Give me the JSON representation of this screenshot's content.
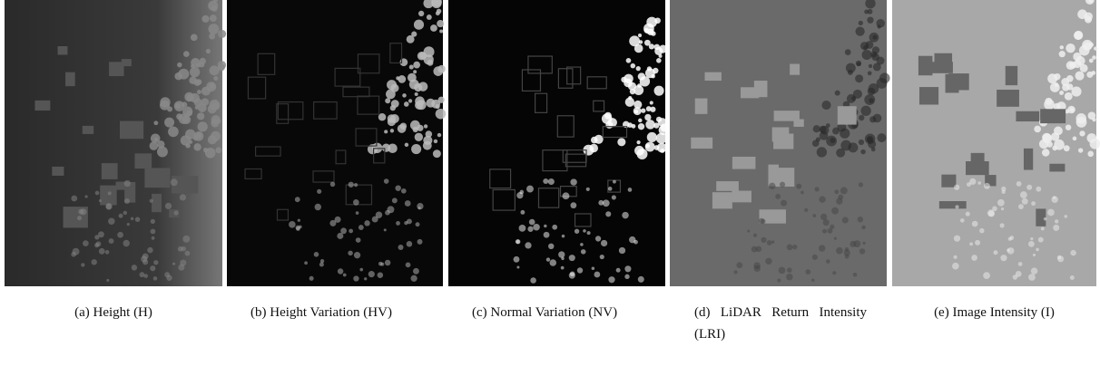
{
  "figure": {
    "panels": [
      {
        "caption": "(a) Height (H)"
      },
      {
        "caption": "(b) Height Variation (HV)"
      },
      {
        "caption": "(c) Normal Variation (NV)"
      },
      {
        "caption": "(d) LiDAR Return Intensity (LRI)"
      },
      {
        "caption": "(e) Image Intensity (I)"
      }
    ]
  }
}
